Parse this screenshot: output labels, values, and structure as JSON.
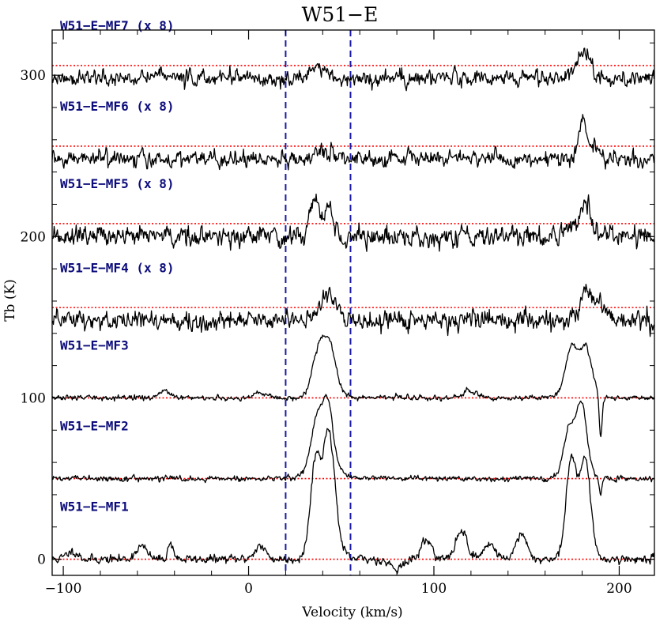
{
  "chart_data": {
    "type": "line",
    "title": "W51−E",
    "xlabel": "Velocity (km/s)",
    "ylabel": "Tb (K)",
    "xlim": [
      -106,
      219
    ],
    "ylim": [
      -10,
      328
    ],
    "xticks": [
      -100,
      0,
      100,
      200
    ],
    "yticks": [
      0,
      100,
      200,
      300
    ],
    "grid": false,
    "vlines": [
      20,
      55
    ],
    "colors": {
      "spectrum": "#000000",
      "baseline": "#ff0000",
      "vline": "#1a1aa8",
      "label": "#0c0c7c"
    },
    "series": [
      {
        "name": "W51−E−MF1",
        "offset": 0,
        "noise": 2.2,
        "seed": 11,
        "peaks": [
          {
            "x": 36,
            "y": 44,
            "w": 2.5
          },
          {
            "x": 43,
            "y": 46,
            "w": 2.5
          },
          {
            "x": 40,
            "y": 28,
            "w": 5
          },
          {
            "x": 46,
            "y": 20,
            "w": 3
          },
          {
            "x": 174,
            "y": 44,
            "w": 2.5
          },
          {
            "x": 182,
            "y": 42,
            "w": 2.5
          },
          {
            "x": 178,
            "y": 28,
            "w": 5
          },
          {
            "x": 115,
            "y": 18,
            "w": 3
          },
          {
            "x": 147,
            "y": 15,
            "w": 3
          },
          {
            "x": 96,
            "y": 12,
            "w": 3
          },
          {
            "x": 130,
            "y": 10,
            "w": 3
          },
          {
            "x": 6,
            "y": 8,
            "w": 3
          },
          {
            "x": -42,
            "y": 10,
            "w": 1.5
          },
          {
            "x": -58,
            "y": 8,
            "w": 3
          },
          {
            "x": -95,
            "y": 5,
            "w": 3
          },
          {
            "x": 80,
            "y": -5,
            "w": 4
          }
        ]
      },
      {
        "name": "W51−E−MF2",
        "offset": 50,
        "noise": 1.3,
        "seed": 22,
        "peaks": [
          {
            "x": 37,
            "y": 24,
            "w": 3
          },
          {
            "x": 43,
            "y": 31,
            "w": 2.5
          },
          {
            "x": 40,
            "y": 18,
            "w": 6
          },
          {
            "x": 173,
            "y": 20,
            "w": 3
          },
          {
            "x": 180,
            "y": 31,
            "w": 2.5
          },
          {
            "x": 177,
            "y": 18,
            "w": 5
          },
          {
            "x": 190,
            "y": -10,
            "w": 0.8
          }
        ]
      },
      {
        "name": "W51−E−MF3",
        "offset": 100,
        "noise": 1.3,
        "seed": 33,
        "peaks": [
          {
            "x": 38,
            "y": 20,
            "w": 3
          },
          {
            "x": 44,
            "y": 20,
            "w": 3
          },
          {
            "x": 41,
            "y": 14,
            "w": 6
          },
          {
            "x": 174,
            "y": 20,
            "w": 3
          },
          {
            "x": 182,
            "y": 20,
            "w": 3
          },
          {
            "x": 178,
            "y": 14,
            "w": 6
          },
          {
            "x": 190,
            "y": -26,
            "w": 0.8
          },
          {
            "x": -45,
            "y": 5,
            "w": 3
          },
          {
            "x": 6,
            "y": 4,
            "w": 3
          },
          {
            "x": 120,
            "y": 4,
            "w": 4
          }
        ]
      },
      {
        "name": "W51−E−MF4 (x 8)",
        "offset": 148,
        "noise": 5,
        "seed": 44,
        "peaks": [
          {
            "x": 40,
            "y": 12,
            "w": 3
          },
          {
            "x": 46,
            "y": 12,
            "w": 3
          },
          {
            "x": 182,
            "y": 18,
            "w": 3
          },
          {
            "x": 190,
            "y": 10,
            "w": 3
          }
        ]
      },
      {
        "name": "W51−E−MF5 (x 8)",
        "offset": 200,
        "noise": 5,
        "seed": 55,
        "peaks": [
          {
            "x": 35,
            "y": 22,
            "w": 2.5
          },
          {
            "x": 43,
            "y": 18,
            "w": 3
          },
          {
            "x": 182,
            "y": 20,
            "w": 3
          },
          {
            "x": 174,
            "y": 8,
            "w": 3
          }
        ]
      },
      {
        "name": "W51−E−MF6 (x 8)",
        "offset": 248,
        "noise": 4,
        "seed": 66,
        "peaks": [
          {
            "x": 180,
            "y": 22,
            "w": 2
          },
          {
            "x": 186,
            "y": 8,
            "w": 3
          },
          {
            "x": 42,
            "y": 5,
            "w": 4
          }
        ]
      },
      {
        "name": "W51−E−MF7 (x 8)",
        "offset": 298,
        "noise": 4,
        "seed": 77,
        "peaks": [
          {
            "x": 182,
            "y": 15,
            "w": 3
          },
          {
            "x": 176,
            "y": 6,
            "w": 3
          },
          {
            "x": 38,
            "y": 7,
            "w": 4
          },
          {
            "x": -48,
            "y": 6,
            "w": 1.5
          }
        ]
      }
    ]
  }
}
